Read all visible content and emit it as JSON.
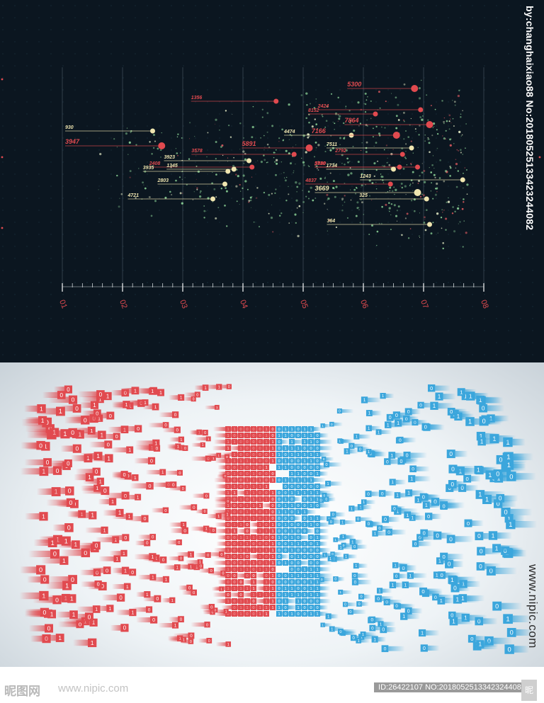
{
  "chart_data": {
    "type": "scatter",
    "x_ticks": [
      "01",
      "02",
      "03",
      "04",
      "05",
      "06",
      "07",
      "08"
    ],
    "labeled_points": [
      {
        "label": "5300",
        "x": 6.85,
        "y": 0.9,
        "color": "#e14a4f"
      },
      {
        "label": "1356",
        "x": 4.55,
        "y": 0.84,
        "color": "#e14a4f"
      },
      {
        "label": "2424",
        "x": 6.95,
        "y": 0.8,
        "color": "#e14a4f"
      },
      {
        "label": "8152",
        "x": 6.2,
        "y": 0.78,
        "color": "#e14a4f"
      },
      {
        "label": "7864",
        "x": 7.1,
        "y": 0.73,
        "color": "#e14a4f"
      },
      {
        "label": "930",
        "x": 2.5,
        "y": 0.7,
        "color": "#f0e6b0"
      },
      {
        "label": "4474",
        "x": 5.8,
        "y": 0.68,
        "color": "#f0e6b0"
      },
      {
        "label": "7166",
        "x": 6.55,
        "y": 0.68,
        "color": "#e14a4f"
      },
      {
        "label": "3947",
        "x": 2.65,
        "y": 0.63,
        "color": "#e14a4f"
      },
      {
        "label": "5891",
        "x": 5.1,
        "y": 0.62,
        "color": "#e14a4f"
      },
      {
        "label": "7511",
        "x": 6.8,
        "y": 0.62,
        "color": "#f0e6b0"
      },
      {
        "label": "3578",
        "x": 4.85,
        "y": 0.59,
        "color": "#e14a4f"
      },
      {
        "label": "2792",
        "x": 6.65,
        "y": 0.59,
        "color": "#e14a4f"
      },
      {
        "label": "3923",
        "x": 4.1,
        "y": 0.56,
        "color": "#f0e6b0"
      },
      {
        "label": "2408",
        "x": 4.15,
        "y": 0.53,
        "color": "#e14a4f"
      },
      {
        "label": "1345",
        "x": 3.85,
        "y": 0.52,
        "color": "#f0e6b0"
      },
      {
        "label": "5730",
        "x": 6.6,
        "y": 0.53,
        "color": "#e14a4f"
      },
      {
        "label": "3880",
        "x": 6.9,
        "y": 0.53,
        "color": "#e14a4f"
      },
      {
        "label": "1734",
        "x": 6.5,
        "y": 0.52,
        "color": "#f0e6b0"
      },
      {
        "label": "3935",
        "x": 3.75,
        "y": 0.51,
        "color": "#f0e6b0"
      },
      {
        "label": "1243",
        "x": 7.65,
        "y": 0.47,
        "color": "#f0e6b0"
      },
      {
        "label": "2803",
        "x": 3.7,
        "y": 0.45,
        "color": "#f0e6b0"
      },
      {
        "label": "4837",
        "x": 6.45,
        "y": 0.45,
        "color": "#e14a4f"
      },
      {
        "label": "3669",
        "x": 6.9,
        "y": 0.41,
        "color": "#f0e6b0"
      },
      {
        "label": "325",
        "x": 7.05,
        "y": 0.38,
        "color": "#f0e6b0"
      },
      {
        "label": "4721",
        "x": 3.5,
        "y": 0.38,
        "color": "#f0e6b0"
      },
      {
        "label": "364",
        "x": 7.1,
        "y": 0.26,
        "color": "#f0e6b0"
      }
    ]
  },
  "watermarks": {
    "top_vertical": "by:changhaixiao88 No:20180525133423244082",
    "bottom_vertical": "www.nipic.com",
    "footer_logo": "昵图网",
    "footer_site": "www.nipic.com",
    "footer_id": "ID:26422107 NO:20180525133423244082",
    "footer_corner": "昵"
  },
  "colors": {
    "red": "#e14a4f",
    "cream": "#f0e6b0",
    "blue": "#3ba6dc",
    "dark_bg": "#0b1620"
  }
}
